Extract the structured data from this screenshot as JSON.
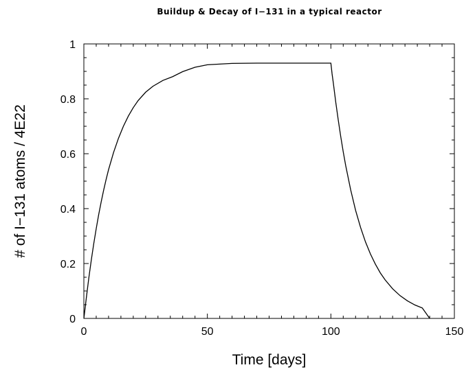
{
  "chart_data": {
    "type": "line",
    "title": "Buildup & Decay of I−131 in a typical reactor",
    "xlabel": "Time [days]",
    "ylabel": "# of I−131 atoms / 4E22",
    "xlim": [
      0,
      150
    ],
    "ylim": [
      0,
      1
    ],
    "x_ticks": [
      "0",
      "50",
      "100",
      "150"
    ],
    "y_ticks": [
      "0",
      "0.2",
      "0.4",
      "0.6",
      "0.8",
      "1"
    ],
    "grid": false,
    "series": [
      {
        "x": [
          0,
          1,
          2,
          3,
          4,
          5,
          6,
          7,
          8,
          9,
          10,
          12,
          14,
          16,
          18,
          20,
          22,
          25,
          28,
          32,
          36,
          40,
          45,
          50,
          60,
          70,
          80,
          90,
          100,
          100.5,
          101,
          102,
          103,
          104,
          105,
          106,
          108,
          110,
          112,
          114,
          116,
          118,
          120,
          122,
          125,
          128,
          131,
          134,
          137,
          140
        ],
        "y": [
          0.0,
          0.075,
          0.147,
          0.212,
          0.272,
          0.327,
          0.378,
          0.424,
          0.467,
          0.506,
          0.542,
          0.604,
          0.656,
          0.7,
          0.737,
          0.768,
          0.794,
          0.824,
          0.846,
          0.867,
          0.881,
          0.899,
          0.915,
          0.924,
          0.929,
          0.93,
          0.93,
          0.93,
          0.93,
          0.89,
          0.857,
          0.786,
          0.722,
          0.662,
          0.607,
          0.557,
          0.469,
          0.394,
          0.332,
          0.279,
          0.235,
          0.198,
          0.166,
          0.14,
          0.108,
          0.083,
          0.064,
          0.049,
          0.038,
          0.0
        ]
      }
    ]
  }
}
